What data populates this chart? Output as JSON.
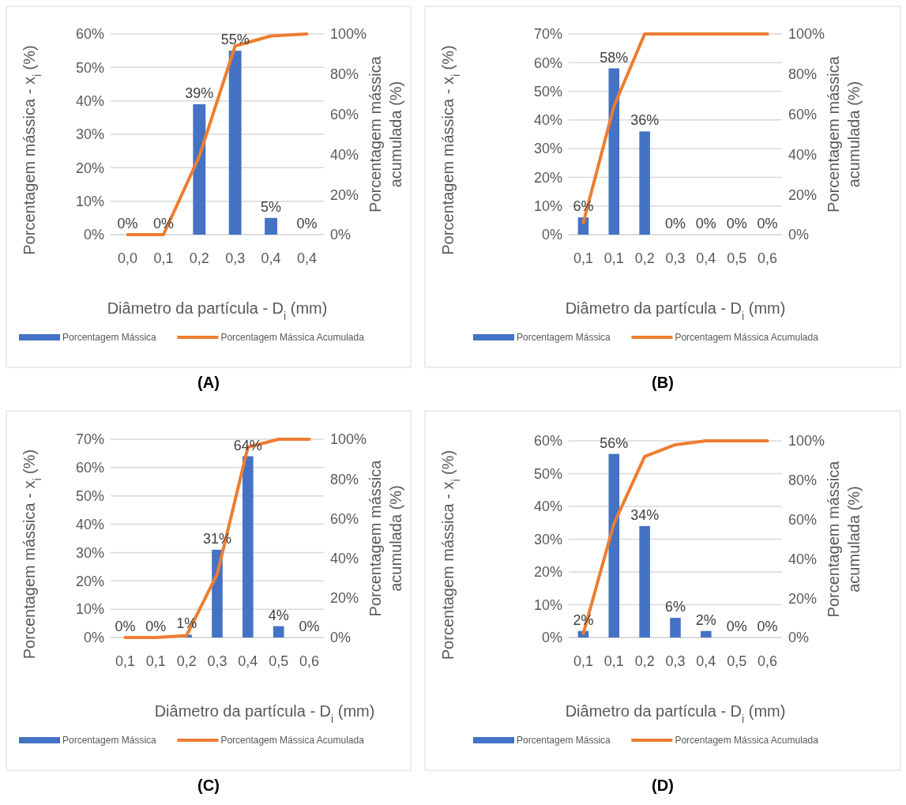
{
  "chart_data": [
    {
      "type": "bar",
      "title": "(A)",
      "xlabel": "Diâmetro da partícula - D$_{i}$ (mm)",
      "ylabel": "Porcentagem mássica - x$_{i}$ (%)",
      "y2label": "Porcentagem mássica acumulada (%)",
      "categories": [
        "0,0",
        "0,1",
        "0,2",
        "0,3",
        "0,4",
        "0,4"
      ],
      "series": [
        {
          "name": "Porcentagem Mássica",
          "color": "#4472c4",
          "values": [
            0,
            0,
            39,
            55,
            5,
            0
          ],
          "value_labels": [
            "0%",
            "0%",
            "39%",
            "55%",
            "5%",
            "0%"
          ]
        },
        {
          "name": "Porcentagem Mássica Acumulada",
          "type": "line",
          "axis": "y2",
          "color": "#ed7d31",
          "values": [
            0,
            0,
            39,
            94,
            99,
            100
          ]
        }
      ],
      "ylim": [
        0,
        60
      ],
      "yticks": [
        {
          "value": 0,
          "label": "0%"
        },
        {
          "value": 10,
          "label": "10%"
        },
        {
          "value": 20,
          "label": "20%"
        },
        {
          "value": 30,
          "label": "30%"
        },
        {
          "value": 40,
          "label": "40%"
        },
        {
          "value": 50,
          "label": "50%"
        },
        {
          "value": 60,
          "label": "60%"
        }
      ],
      "y2lim": [
        0,
        100
      ],
      "y2ticks": [
        {
          "value": 0,
          "label": "0%"
        },
        {
          "value": 20,
          "label": "20%"
        },
        {
          "value": 40,
          "label": "40%"
        },
        {
          "value": 60,
          "label": "60%"
        },
        {
          "value": 80,
          "label": "80%"
        },
        {
          "value": 100,
          "label": "100%"
        }
      ],
      "grid": "y",
      "legend": "bottom",
      "marker": "none",
      "line_style": "solid"
    },
    {
      "type": "bar",
      "title": "(B)",
      "xlabel": "Diâmetro da partícula - D$_{i}$ (mm)",
      "ylabel": "Porcentagem mássica - x$_{i}$ (%)",
      "y2label": "Porcentagem mássica acumulada (%)",
      "categories": [
        "0,1",
        "0,1",
        "0,2",
        "0,3",
        "0,4",
        "0,5",
        "0,6"
      ],
      "series": [
        {
          "name": "Porcentagem Mássica",
          "color": "#4472c4",
          "values": [
            6,
            58,
            36,
            0,
            0,
            0,
            0
          ],
          "value_labels": [
            "6%",
            "58%",
            "36%",
            "0%",
            "0%",
            "0%",
            "0%"
          ]
        },
        {
          "name": "Porcentagem Mássica Acumulada",
          "type": "line",
          "axis": "y2",
          "color": "#ed7d31",
          "values": [
            6,
            64,
            100,
            100,
            100,
            100,
            100
          ]
        }
      ],
      "ylim": [
        0,
        70
      ],
      "yticks": [
        {
          "value": 0,
          "label": "0%"
        },
        {
          "value": 10,
          "label": "10%"
        },
        {
          "value": 20,
          "label": "20%"
        },
        {
          "value": 30,
          "label": "30%"
        },
        {
          "value": 40,
          "label": "40%"
        },
        {
          "value": 50,
          "label": "50%"
        },
        {
          "value": 60,
          "label": "60%"
        },
        {
          "value": 70,
          "label": "70%"
        }
      ],
      "y2lim": [
        0,
        100
      ],
      "y2ticks": [
        {
          "value": 0,
          "label": "0%"
        },
        {
          "value": 20,
          "label": "20%"
        },
        {
          "value": 40,
          "label": "40%"
        },
        {
          "value": 60,
          "label": "60%"
        },
        {
          "value": 80,
          "label": "80%"
        },
        {
          "value": 100,
          "label": "100%"
        }
      ],
      "grid": "y",
      "legend": "bottom",
      "marker": "none",
      "line_style": "solid"
    },
    {
      "type": "bar",
      "title": "(C)",
      "xlabel": "Diâmetro da partícula - D$_{i}$ (mm)",
      "ylabel": "Porcentagem mássica - x$_{i}$ (%)",
      "y2label": "Porcentagem mássica acumulada (%)",
      "categories": [
        "0,1",
        "0,1",
        "0,2",
        "0,3",
        "0,4",
        "0,5",
        "0,6"
      ],
      "series": [
        {
          "name": "Porcentagem Mássica",
          "color": "#4472c4",
          "values": [
            0,
            0,
            1,
            31,
            64,
            4,
            0
          ],
          "value_labels": [
            "0%",
            "0%",
            "1%",
            "31%",
            "64%",
            "4%",
            "0%"
          ]
        },
        {
          "name": "Porcentagem Mássica Acumulada",
          "type": "line",
          "axis": "y2",
          "color": "#ed7d31",
          "values": [
            0,
            0,
            1,
            32,
            96,
            100,
            100
          ]
        }
      ],
      "ylim": [
        0,
        70
      ],
      "yticks": [
        {
          "value": 0,
          "label": "0%"
        },
        {
          "value": 10,
          "label": "10%"
        },
        {
          "value": 20,
          "label": "20%"
        },
        {
          "value": 30,
          "label": "30%"
        },
        {
          "value": 40,
          "label": "40%"
        },
        {
          "value": 50,
          "label": "50%"
        },
        {
          "value": 60,
          "label": "60%"
        },
        {
          "value": 70,
          "label": "70%"
        }
      ],
      "y2lim": [
        0,
        100
      ],
      "y2ticks": [
        {
          "value": 0,
          "label": "0%"
        },
        {
          "value": 20,
          "label": "20%"
        },
        {
          "value": 40,
          "label": "40%"
        },
        {
          "value": 60,
          "label": "60%"
        },
        {
          "value": 80,
          "label": "80%"
        },
        {
          "value": 100,
          "label": "100%"
        }
      ],
      "grid": "y",
      "legend": "bottom",
      "marker": "none",
      "line_style": "solid"
    },
    {
      "type": "bar",
      "title": "(D)",
      "xlabel": "Diâmetro da partícula - D$_{i}$ (mm)",
      "ylabel": "Porcentagem mássica - x$_{i}$ (%)",
      "y2label": "Porcentagem mássica acumulada (%)",
      "categories": [
        "0,1",
        "0,1",
        "0,2",
        "0,3",
        "0,4",
        "0,5",
        "0,6"
      ],
      "series": [
        {
          "name": "Porcentagem Mássica",
          "color": "#4472c4",
          "values": [
            2,
            56,
            34,
            6,
            2,
            0,
            0
          ],
          "value_labels": [
            "2%",
            "56%",
            "34%",
            "6%",
            "2%",
            "0%",
            "0%"
          ]
        },
        {
          "name": "Porcentagem Mássica Acumulada",
          "type": "line",
          "axis": "y2",
          "color": "#ed7d31",
          "values": [
            2,
            58,
            92,
            98,
            100,
            100,
            100
          ]
        }
      ],
      "ylim": [
        0,
        60
      ],
      "yticks": [
        {
          "value": 0,
          "label": "0%"
        },
        {
          "value": 10,
          "label": "10%"
        },
        {
          "value": 20,
          "label": "20%"
        },
        {
          "value": 30,
          "label": "30%"
        },
        {
          "value": 40,
          "label": "40%"
        },
        {
          "value": 50,
          "label": "50%"
        },
        {
          "value": 60,
          "label": "60%"
        }
      ],
      "y2lim": [
        0,
        100
      ],
      "y2ticks": [
        {
          "value": 0,
          "label": "0%"
        },
        {
          "value": 20,
          "label": "20%"
        },
        {
          "value": 40,
          "label": "40%"
        },
        {
          "value": 60,
          "label": "60%"
        },
        {
          "value": 80,
          "label": "80%"
        },
        {
          "value": 100,
          "label": "100%"
        }
      ],
      "grid": "y",
      "legend": "bottom",
      "marker": "none",
      "line_style": "solid"
    }
  ]
}
